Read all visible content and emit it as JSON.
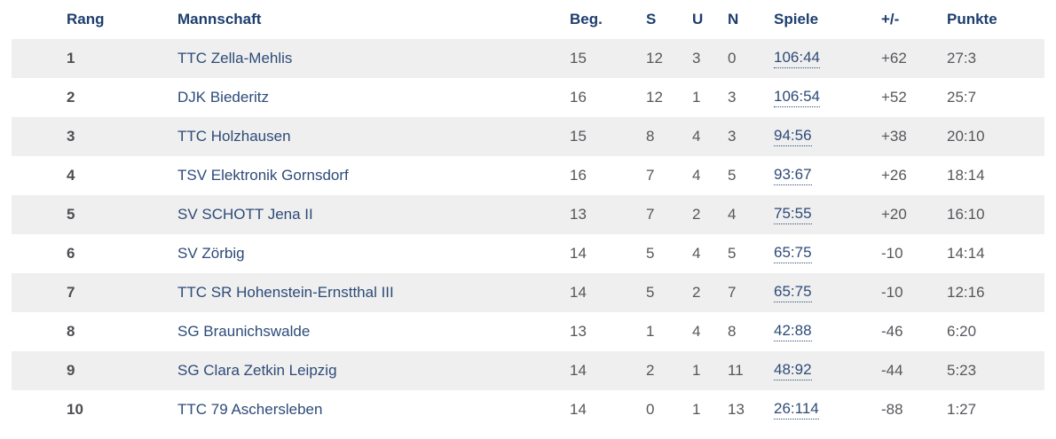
{
  "colors": {
    "header_text": "#1d3e6e",
    "link_text": "#2d4b78",
    "body_text": "#55575c",
    "rank_text": "#4d4f54",
    "stripe_bg": "#efefef"
  },
  "table": {
    "columns": [
      {
        "key": "rang",
        "label": "Rang"
      },
      {
        "key": "mannschaft",
        "label": "Mannschaft"
      },
      {
        "key": "beg",
        "label": "Beg."
      },
      {
        "key": "s",
        "label": "S"
      },
      {
        "key": "u",
        "label": "U"
      },
      {
        "key": "n",
        "label": "N"
      },
      {
        "key": "spiele",
        "label": "Spiele"
      },
      {
        "key": "plusminus",
        "label": "+/-"
      },
      {
        "key": "punkte",
        "label": "Punkte"
      }
    ],
    "rows": [
      {
        "rang": "1",
        "mannschaft": "TTC Zella-Mehlis",
        "beg": "15",
        "s": "12",
        "u": "3",
        "n": "0",
        "spiele": "106:44",
        "plusminus": "+62",
        "punkte": "27:3"
      },
      {
        "rang": "2",
        "mannschaft": "DJK Biederitz",
        "beg": "16",
        "s": "12",
        "u": "1",
        "n": "3",
        "spiele": "106:54",
        "plusminus": "+52",
        "punkte": "25:7"
      },
      {
        "rang": "3",
        "mannschaft": "TTC Holzhausen",
        "beg": "15",
        "s": "8",
        "u": "4",
        "n": "3",
        "spiele": "94:56",
        "plusminus": "+38",
        "punkte": "20:10"
      },
      {
        "rang": "4",
        "mannschaft": "TSV Elektronik Gornsdorf",
        "beg": "16",
        "s": "7",
        "u": "4",
        "n": "5",
        "spiele": "93:67",
        "plusminus": "+26",
        "punkte": "18:14"
      },
      {
        "rang": "5",
        "mannschaft": "SV SCHOTT Jena II",
        "beg": "13",
        "s": "7",
        "u": "2",
        "n": "4",
        "spiele": "75:55",
        "plusminus": "+20",
        "punkte": "16:10"
      },
      {
        "rang": "6",
        "mannschaft": "SV Zörbig",
        "beg": "14",
        "s": "5",
        "u": "4",
        "n": "5",
        "spiele": "65:75",
        "plusminus": "-10",
        "punkte": "14:14"
      },
      {
        "rang": "7",
        "mannschaft": "TTC SR Hohenstein-Ernstthal III",
        "beg": "14",
        "s": "5",
        "u": "2",
        "n": "7",
        "spiele": "65:75",
        "plusminus": "-10",
        "punkte": "12:16"
      },
      {
        "rang": "8",
        "mannschaft": "SG Braunichswalde",
        "beg": "13",
        "s": "1",
        "u": "4",
        "n": "8",
        "spiele": "42:88",
        "plusminus": "-46",
        "punkte": "6:20"
      },
      {
        "rang": "9",
        "mannschaft": "SG Clara Zetkin Leipzig",
        "beg": "14",
        "s": "2",
        "u": "1",
        "n": "11",
        "spiele": "48:92",
        "plusminus": "-44",
        "punkte": "5:23"
      },
      {
        "rang": "10",
        "mannschaft": "TTC 79 Aschersleben",
        "beg": "14",
        "s": "0",
        "u": "1",
        "n": "13",
        "spiele": "26:114",
        "plusminus": "-88",
        "punkte": "1:27"
      }
    ]
  }
}
